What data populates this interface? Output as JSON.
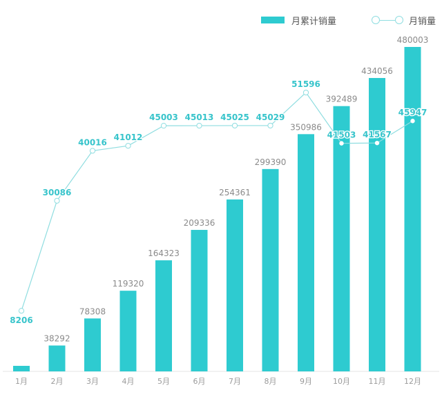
{
  "legend": {
    "bar_label": "月累计销量",
    "line_label": "月销量"
  },
  "colors": {
    "bar": "#2ECBD0",
    "line": "#8FDDE0",
    "line_label": "#37C4CB",
    "bar_label": "#8A8A8A",
    "axis_text": "#9A9A9A"
  },
  "chart_data": {
    "type": "bar",
    "categories": [
      "1月",
      "2月",
      "3月",
      "4月",
      "5月",
      "6月",
      "7月",
      "8月",
      "9月",
      "10月",
      "11月",
      "12月"
    ],
    "series": [
      {
        "name": "月累计销量",
        "type": "bar",
        "values": [
          8206,
          38292,
          78308,
          119320,
          164323,
          209336,
          254361,
          299390,
          350986,
          392489,
          434056,
          480003
        ]
      },
      {
        "name": "月销量",
        "type": "line",
        "values": [
          8206,
          30086,
          40016,
          41012,
          45003,
          45013,
          45025,
          45029,
          51596,
          41503,
          41567,
          45947
        ]
      }
    ],
    "ylim": [
      0,
      480003
    ],
    "line_ylim": [
      0,
      70000
    ],
    "legend_position": "top-right",
    "grid": false
  }
}
